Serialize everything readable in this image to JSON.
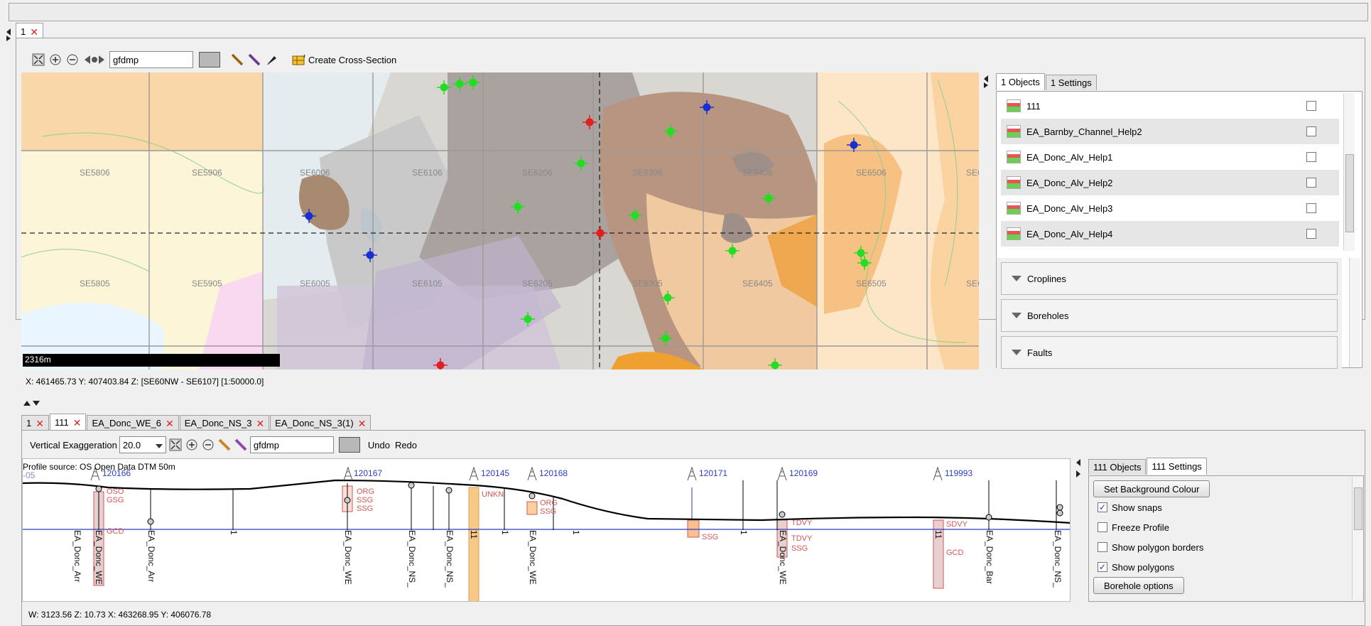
{
  "top_tab": {
    "label": "1"
  },
  "map_toolbar": {
    "layer_input": "gfdmp",
    "cross_section_label": "Create Cross-Section"
  },
  "map": {
    "grid_labels": [
      "SE5806",
      "SE5906",
      "SE6006",
      "SE6106",
      "SE6206",
      "SE6306",
      "SE6406",
      "SE6506",
      "SE5805",
      "SE5905",
      "SE6005",
      "SE6105",
      "SE6205",
      "SE6305",
      "SE6405",
      "SE6505",
      "SE6",
      "SE6"
    ],
    "scale_label": "2316m",
    "status": "X: 461465.73 Y: 407403.84 Z:  [SE60NW - SE6107] [1:50000.0]"
  },
  "objects_panel": {
    "tabs": [
      "1 Objects",
      "1 Settings"
    ],
    "items": [
      "111",
      "EA_Barnby_Channel_Help2",
      "EA_Donc_Alv_Help1",
      "EA_Donc_Alv_Help2",
      "EA_Donc_Alv_Help3",
      "EA_Donc_Alv_Help4"
    ],
    "sections": [
      "Croplines",
      "Boreholes",
      "Faults"
    ]
  },
  "profile_tabs": [
    "1",
    "111",
    "EA_Donc_WE_6",
    "EA_Donc_NS_3",
    "EA_Donc_NS_3(1)"
  ],
  "profile_toolbar": {
    "vert_exag_label": "Vertical Exaggeration",
    "vert_exag_value": "20.0",
    "layer_input": "gfdmp",
    "undo_label": "Undo",
    "redo_label": "Redo"
  },
  "profile": {
    "source_label": "Profile source: OS Open Data DTM 50m",
    "boreholes": [
      "120166",
      "120167",
      "120145",
      "120168",
      "120171",
      "120169",
      "119993"
    ],
    "left_code": "-05",
    "strata_labels": [
      "OSO",
      "GSG",
      "GCD",
      "SSG",
      "UNKN",
      "ORG",
      "SSG",
      "TDVY",
      "SSG",
      "GCD",
      "SDVY",
      "TDVY",
      "ORG",
      "SSG"
    ],
    "bottom_labels": [
      "EA_Donc_Arr",
      "EA_Donc_WE",
      "EA_Donc_Arr",
      "1",
      "EA_Donc_WE",
      "EA_Donc_NS_",
      "EA_Donc_NS_",
      "11",
      "1",
      "EA_Donc_WE",
      "1",
      "1",
      "EA_Donc_WE",
      "11",
      "EA_Donc_Bar",
      "EA_Donc_NS_"
    ],
    "status": "W: 3123.56 Z: 10.73 X: 463268.95 Y: 406076.78"
  },
  "profile_settings": {
    "tabs": [
      "111 Objects",
      "111 Settings"
    ],
    "bg_button": "Set Background Colour",
    "options": [
      {
        "label": "Show snaps",
        "checked": true
      },
      {
        "label": "Freeze Profile",
        "checked": false
      },
      {
        "label": "Show polygon borders",
        "checked": false
      },
      {
        "label": "Show polygons",
        "checked": true
      }
    ],
    "borehole_button": "Borehole options"
  },
  "colors": {
    "accent_blue": "#2b3fbf",
    "well_red": "#e02020",
    "well_green": "#22dd22",
    "well_blue": "#1a2fd0",
    "strata_red": "#d85555"
  }
}
